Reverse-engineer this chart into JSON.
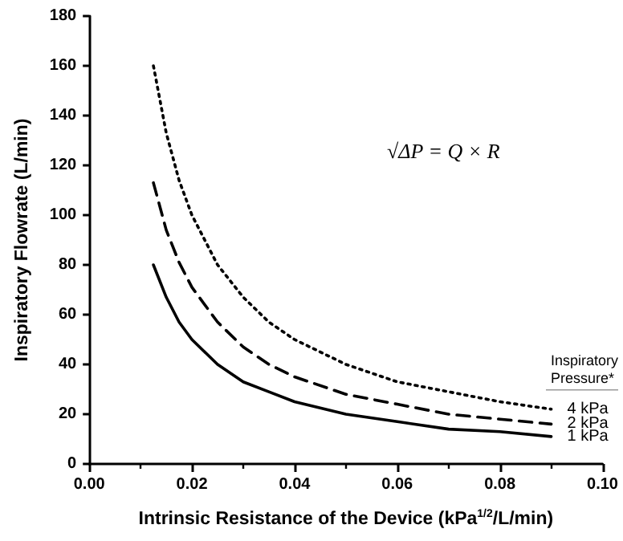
{
  "chart_data": {
    "type": "line",
    "xlabel": "Intrinsic Resistance of the Device (kPa$^{1/2}$/L/min)",
    "ylabel": "Inspiratory Flowrate (L/min)",
    "legend_title": "Inspiratory Pressure*",
    "annotations": [
      "√ΔP = Q × R"
    ],
    "x": [
      0.0125,
      0.015,
      0.0175,
      0.02,
      0.025,
      0.03,
      0.035,
      0.04,
      0.05,
      0.06,
      0.07,
      0.08,
      0.09
    ],
    "series": [
      {
        "name": "4 kPa",
        "color": "#000000",
        "line_style": "dotted",
        "values": [
          160,
          133,
          114,
          100,
          80,
          67,
          57,
          50,
          40,
          33,
          29,
          25,
          22
        ]
      },
      {
        "name": "2 kPa",
        "color": "#000000",
        "line_style": "dashed",
        "values": [
          113,
          94,
          81,
          71,
          57,
          47,
          40,
          35,
          28,
          24,
          20,
          18,
          16
        ]
      },
      {
        "name": "1 kPa",
        "color": "#000000",
        "line_style": "solid",
        "values": [
          80,
          67,
          57,
          50,
          40,
          33,
          29,
          25,
          20,
          17,
          14,
          13,
          11
        ]
      }
    ],
    "xlim": [
      0,
      0.1
    ],
    "xticks": [
      {
        "value": 0,
        "label": "0.00"
      },
      0.02,
      0.04,
      0.06,
      0.08,
      {
        "value": 0.1,
        "label": "0.10"
      }
    ],
    "ylim": [
      0,
      180
    ],
    "yticks": [
      0,
      20,
      40,
      60,
      80,
      100,
      120,
      140,
      160,
      180
    ],
    "grid": false,
    "legend": false,
    "marker": "none"
  }
}
